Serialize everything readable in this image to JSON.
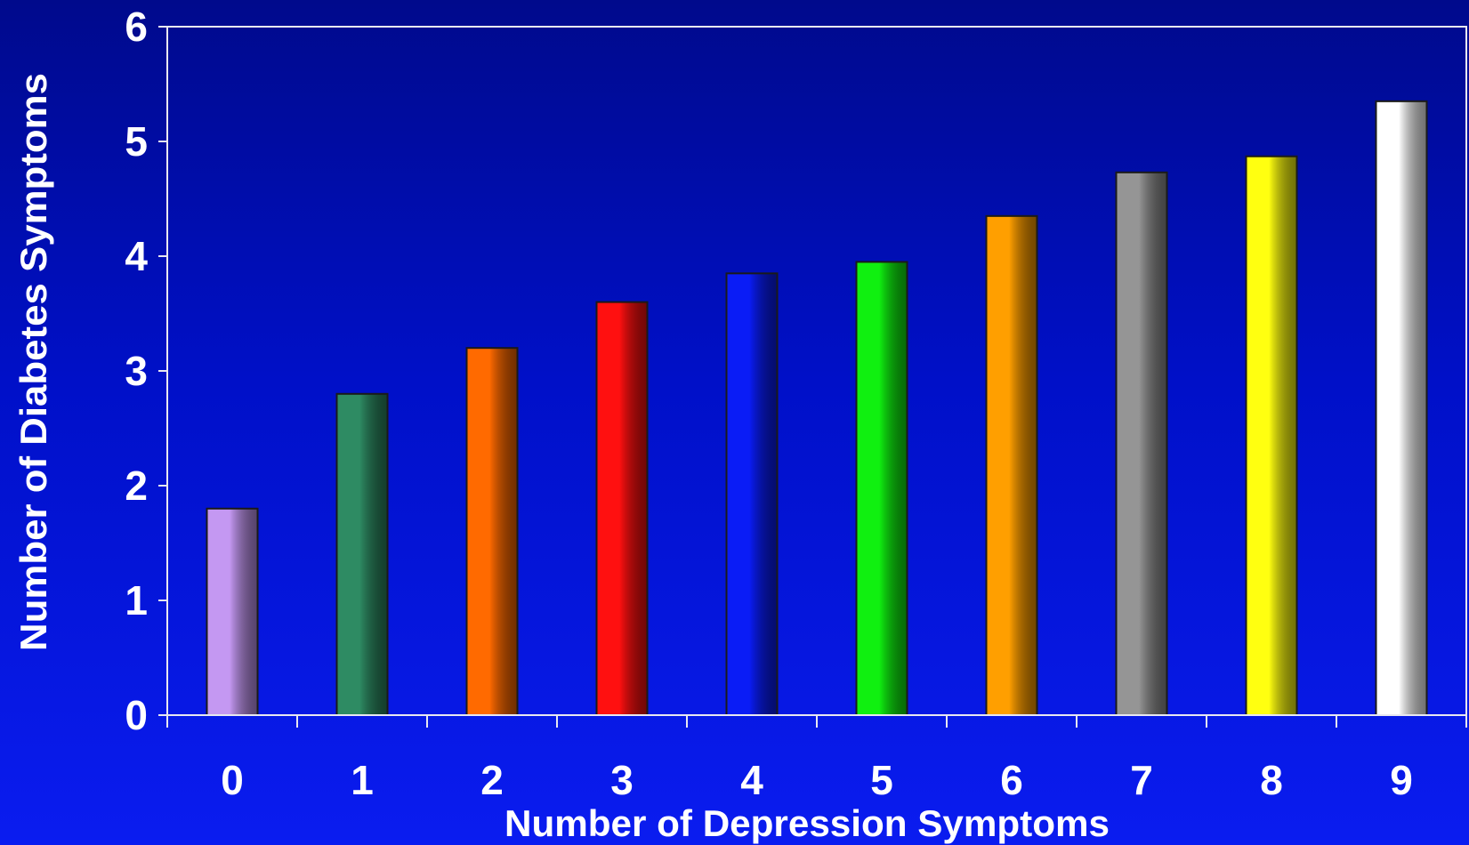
{
  "chart_data": {
    "type": "bar",
    "xlabel": "Number of Depression Symptoms",
    "ylabel": "Number of Diabetes Symptoms",
    "categories": [
      "0",
      "1",
      "2",
      "3",
      "4",
      "5",
      "6",
      "7",
      "8",
      "9"
    ],
    "values": [
      1.8,
      2.8,
      3.2,
      3.6,
      3.85,
      3.95,
      4.35,
      4.73,
      4.87,
      5.35
    ],
    "ylim": [
      0,
      6
    ],
    "yticks": [
      0,
      1,
      2,
      3,
      4,
      5,
      6
    ],
    "grid": false,
    "legend": "none",
    "bar_colors": [
      "#c498f2",
      "#2e8b63",
      "#ff6a00",
      "#ff1010",
      "#0a1cf6",
      "#10f010",
      "#ff9f00",
      "#959595",
      "#ffff10",
      "#ffffff"
    ]
  }
}
